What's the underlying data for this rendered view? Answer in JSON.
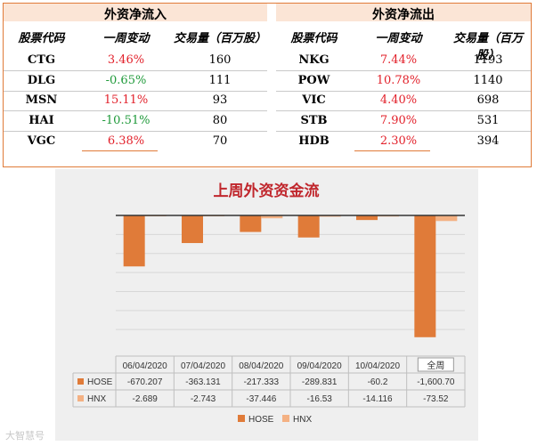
{
  "inflow": {
    "title": "外资净流入",
    "headers": [
      "股票代码",
      "一周变动",
      "交易量（百万股）"
    ],
    "rows": [
      {
        "code": "CTG",
        "change": "3.46%",
        "volume": "160",
        "dir": "pos"
      },
      {
        "code": "DLG",
        "change": "-0.65%",
        "volume": "111",
        "dir": "neg"
      },
      {
        "code": "MSN",
        "change": "15.11%",
        "volume": "93",
        "dir": "pos"
      },
      {
        "code": "HAI",
        "change": "-10.51%",
        "volume": "80",
        "dir": "neg"
      },
      {
        "code": "VGC",
        "change": "6.38%",
        "volume": "70",
        "dir": "pos"
      }
    ]
  },
  "outflow": {
    "title": "外资净流出",
    "headers": [
      "股票代码",
      "一周变动",
      "交易量（百万股）"
    ],
    "rows": [
      {
        "code": "NKG",
        "change": "7.44%",
        "volume": "1193",
        "dir": "pos"
      },
      {
        "code": "POW",
        "change": "10.78%",
        "volume": "1140",
        "dir": "pos"
      },
      {
        "code": "VIC",
        "change": "4.40%",
        "volume": "698",
        "dir": "pos"
      },
      {
        "code": "STB",
        "change": "7.90%",
        "volume": "531",
        "dir": "pos"
      },
      {
        "code": "HDB",
        "change": "2.30%",
        "volume": "394",
        "dir": "pos"
      }
    ]
  },
  "chart_data": {
    "type": "bar",
    "title": "上周外资资金流",
    "categories": [
      "06/04/2020",
      "07/04/2020",
      "08/04/2020",
      "09/04/2020",
      "10/04/2020",
      "全周"
    ],
    "series": [
      {
        "name": "HOSE",
        "values": [
          -670.207,
          -363.131,
          -217.333,
          -289.831,
          -60.2,
          -1600.7
        ],
        "labels": [
          "-670.207",
          "-363.131",
          "-217.333",
          "-289.831",
          "-60.2",
          "-1,600.70"
        ],
        "color": "#e07b39"
      },
      {
        "name": "HNX",
        "values": [
          -2.689,
          -2.743,
          -37.446,
          -16.53,
          -14.116,
          -73.52
        ],
        "labels": [
          "-2.689",
          "-2.743",
          "-37.446",
          "-16.53",
          "-14.116",
          "-73.52"
        ],
        "color": "#f4b183"
      }
    ],
    "ylim": [
      -1650,
      0
    ],
    "grid": true,
    "legend": "bottom"
  },
  "watermark": "大智慧号"
}
